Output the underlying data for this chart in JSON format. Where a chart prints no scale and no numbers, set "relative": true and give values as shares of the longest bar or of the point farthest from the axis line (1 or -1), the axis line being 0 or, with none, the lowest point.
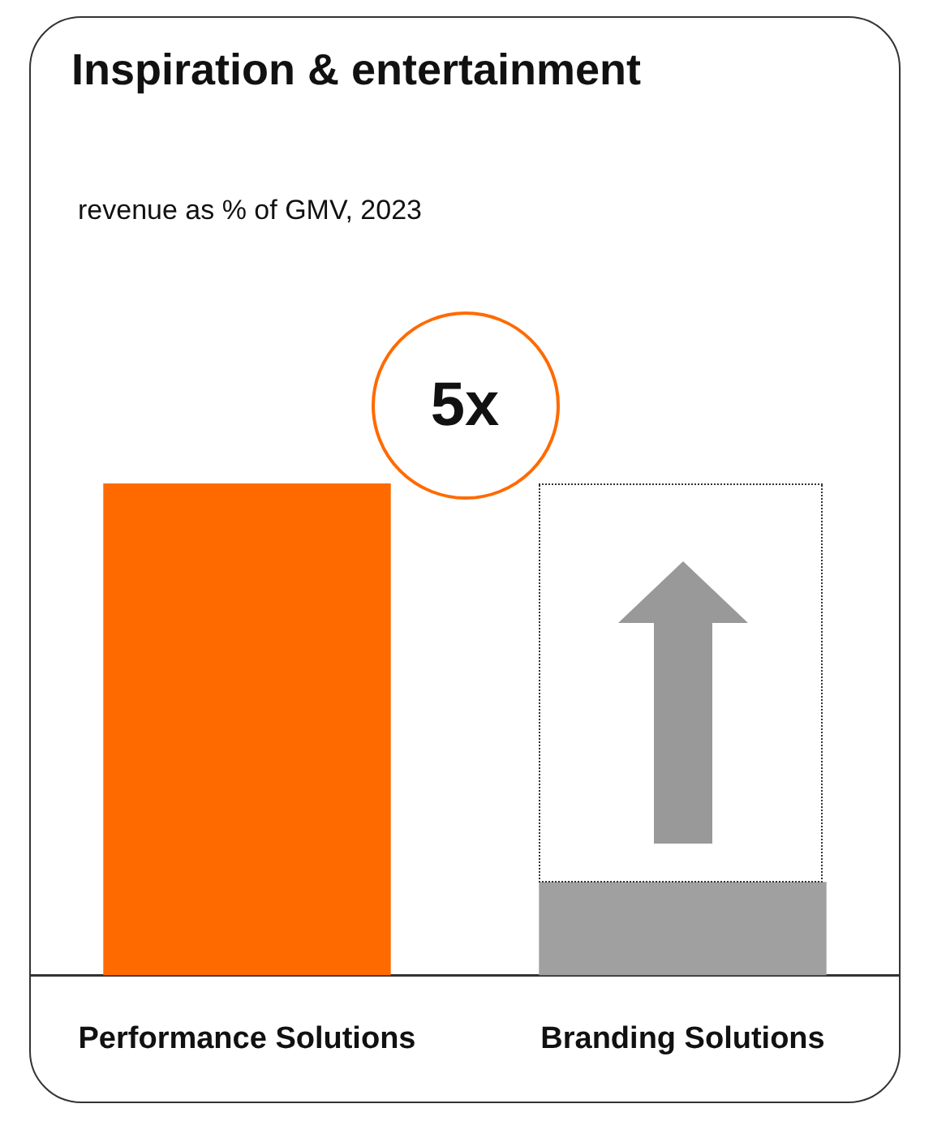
{
  "chart_data": {
    "type": "bar",
    "title": "Inspiration & entertainment",
    "subtitle": "revenue as % of GMV, 2023",
    "categories": [
      "Performance Solutions",
      "Branding Solutions"
    ],
    "values": [
      1,
      0.19
    ],
    "colors": [
      "#ff6a00",
      "#a0a0a0"
    ],
    "relative": true,
    "grid": false,
    "legend": false,
    "annotations": [
      "5x"
    ]
  }
}
